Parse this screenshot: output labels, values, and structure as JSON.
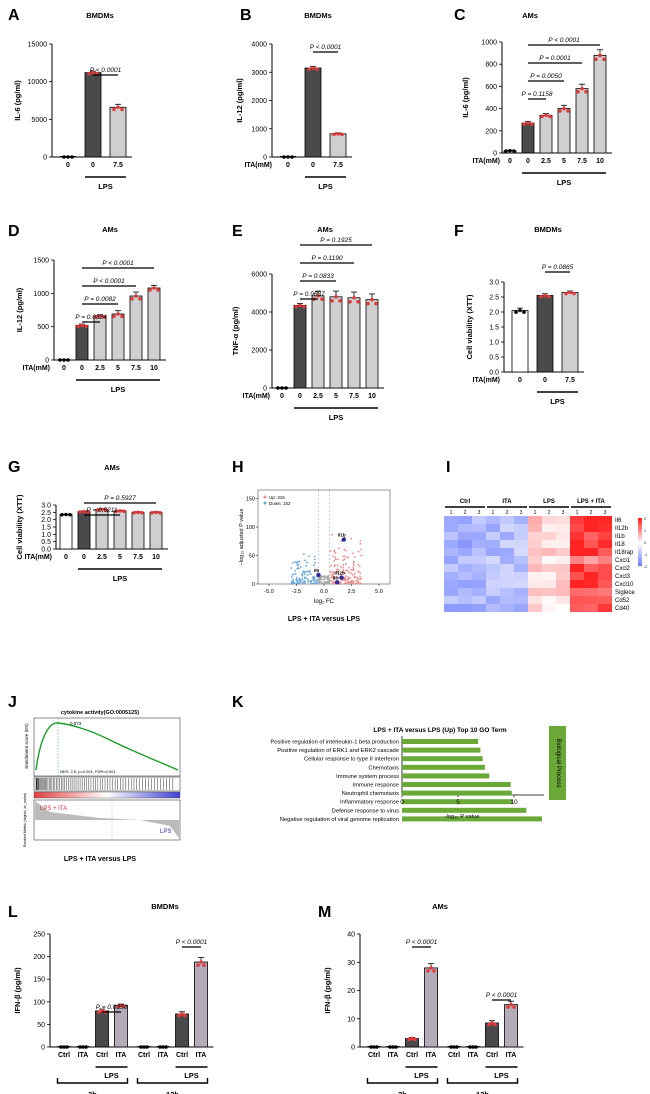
{
  "figure": {
    "panels": [
      {
        "letter": "A",
        "title": "BMDMs",
        "ylabel": "IL-6 (pg/ml)",
        "group": "LPS",
        "xrow": "ITA(mM)"
      },
      {
        "letter": "B",
        "title": "BMDMs",
        "ylabel": "IL-12 (pg/ml)",
        "group": "LPS",
        "xrow": "ITA(mM)"
      },
      {
        "letter": "C",
        "title": "AMs",
        "ylabel": "IL-6 (pg/ml)",
        "group": "LPS",
        "xrow": "ITA(mM)"
      },
      {
        "letter": "D",
        "title": "AMs",
        "ylabel": "IL-12 (pg/ml)",
        "group": "LPS",
        "xrow": "ITA(mM)"
      },
      {
        "letter": "E",
        "title": "AMs",
        "ylabel": "TNF-α (pg/ml)",
        "group": "LPS",
        "xrow": "ITA(mM)"
      },
      {
        "letter": "F",
        "title": "BMDMs",
        "ylabel": "Cell viability (XTT)",
        "group": "LPS",
        "xrow": "ITA(mM)"
      },
      {
        "letter": "G",
        "title": "AMs",
        "ylabel": "Cell viability (XTT)",
        "group": "LPS",
        "xrow": "ITA(mM)"
      },
      {
        "letter": "L",
        "title": "BMDMs",
        "ylabel": "IFN-β (pg/ml)",
        "group": "LPS"
      },
      {
        "letter": "M",
        "title": "AMs",
        "ylabel": "IFN-β (pg/ml)",
        "group": "LPS"
      }
    ],
    "volcano": {
      "letter": "H",
      "xlabel": "log₂ FC",
      "ylabel": "−log₁₀ adjusted P value",
      "caption": "LPS + ITA versus LPS",
      "legend": [
        "Up: 316",
        "Down: 162"
      ]
    },
    "heatmap": {
      "letter": "I",
      "groups": [
        "Ctrl",
        "ITA",
        "LPS",
        "LPS + ITA"
      ],
      "reps": [
        "1",
        "2",
        "3"
      ],
      "genes": [
        "Il6",
        "Il12b",
        "Il1b",
        "Il18",
        "Il18rap",
        "Cxcl1",
        "Cxcl2",
        "Cxcl3",
        "Cxcl10",
        "Siglece",
        "Cd52",
        "Cd40"
      ],
      "scale": [
        "2",
        "1",
        "0",
        "-1",
        "-2"
      ]
    },
    "gsea": {
      "letter": "J",
      "title": "cytokine activity(GO:0005125)",
      "ylabel": "Enrichment score (ES)",
      "stats": "NES: 2.5, p<0.001, FDR<0.001",
      "left_label": "LPS + ITA",
      "right_label": "LPS",
      "metric_label": "Ranked Metric (signal_to_noise)",
      "caption": "LPS + ITA versus LPS",
      "es_peak": "0.573"
    },
    "go": {
      "letter": "K",
      "title": "LPS + ITA versus LPS (Up) Top 10 GO Term",
      "side": "Biological Process",
      "xlabel": "-log₁₀ P value"
    },
    "time_labels": [
      "3h",
      "12h"
    ]
  },
  "chart_data": [
    {
      "panel": "A",
      "type": "bar",
      "title": "BMDMs",
      "ylabel": "IL-6 (pg/ml)",
      "categories": [
        "0",
        "0",
        "7.5"
      ],
      "ticks": [
        0,
        5000,
        10000,
        15000
      ],
      "ylim": [
        0,
        15000
      ],
      "values": [
        0,
        11200,
        6600
      ],
      "errors": [
        0,
        200,
        400
      ],
      "colors": [
        "white",
        "dark",
        "light"
      ],
      "pvalues": [
        {
          "text": "P < 0.0001",
          "a": 1,
          "b": 2
        }
      ],
      "lps": [
        1,
        2
      ]
    },
    {
      "panel": "B",
      "type": "bar",
      "title": "BMDMs",
      "ylabel": "IL-12 (pg/ml)",
      "categories": [
        "0",
        "0",
        "7.5"
      ],
      "ticks": [
        0,
        1000,
        2000,
        3000,
        4000
      ],
      "ylim": [
        0,
        4000
      ],
      "values": [
        0,
        3150,
        820
      ],
      "errors": [
        0,
        60,
        30
      ],
      "colors": [
        "white",
        "dark",
        "light"
      ],
      "pvalues": [
        {
          "text": "P < 0.0001",
          "a": 1,
          "b": 2
        }
      ],
      "lps": [
        1,
        2
      ]
    },
    {
      "panel": "C",
      "type": "bar",
      "title": "AMs",
      "ylabel": "IL-6 (pg/ml)",
      "categories": [
        "0",
        "0",
        "2.5",
        "5",
        "7.5",
        "10"
      ],
      "ticks": [
        0,
        200,
        400,
        600,
        800,
        1000
      ],
      "ylim": [
        0,
        1000
      ],
      "values": [
        20,
        270,
        340,
        400,
        580,
        880
      ],
      "errors": [
        5,
        15,
        15,
        30,
        40,
        50
      ],
      "colors": [
        "white",
        "dark",
        "light",
        "light",
        "light",
        "light"
      ],
      "pvalues": [
        {
          "text": "P = 0.1158",
          "a": 1,
          "b": 2
        },
        {
          "text": "P = 0.0050",
          "a": 1,
          "b": 3
        },
        {
          "text": "P = 0.0001",
          "a": 1,
          "b": 4
        },
        {
          "text": "P < 0.0001",
          "a": 1,
          "b": 5
        }
      ],
      "lps": [
        1,
        5
      ]
    },
    {
      "panel": "D",
      "type": "bar",
      "title": "AMs",
      "ylabel": "IL-12 (pg/ml)",
      "categories": [
        "0",
        "0",
        "2.5",
        "5",
        "7.5",
        "10"
      ],
      "ticks": [
        0,
        500,
        1000,
        1500
      ],
      "ylim": [
        0,
        1500
      ],
      "values": [
        0,
        520,
        660,
        690,
        960,
        1080
      ],
      "errors": [
        0,
        20,
        20,
        50,
        60,
        40
      ],
      "colors": [
        "white",
        "dark",
        "light",
        "light",
        "light",
        "light"
      ],
      "pvalues": [
        {
          "text": "P = 0.0324",
          "a": 1,
          "b": 2
        },
        {
          "text": "P = 0.0082",
          "a": 1,
          "b": 3
        },
        {
          "text": "P < 0.0001",
          "a": 1,
          "b": 4
        },
        {
          "text": "P < 0.0001",
          "a": 1,
          "b": 5
        }
      ],
      "lps": [
        1,
        5
      ]
    },
    {
      "panel": "E",
      "type": "bar",
      "title": "AMs",
      "ylabel": "TNF-α (pg/ml)",
      "categories": [
        "0",
        "0",
        "2.5",
        "5",
        "7.5",
        "10"
      ],
      "ticks": [
        0,
        2000,
        4000,
        6000
      ],
      "ylim": [
        0,
        6000
      ],
      "values": [
        0,
        4350,
        4850,
        4800,
        4750,
        4650
      ],
      "errors": [
        0,
        100,
        250,
        300,
        300,
        300
      ],
      "colors": [
        "white",
        "dark",
        "light",
        "light",
        "light",
        "light"
      ],
      "pvalues": [
        {
          "text": "P = 0.9637",
          "a": 1,
          "b": 2
        },
        {
          "text": "P = 0.0833",
          "a": 1,
          "b": 3
        },
        {
          "text": "P = 0.1190",
          "a": 1,
          "b": 4
        },
        {
          "text": "P = 0.1925",
          "a": 1,
          "b": 5
        }
      ],
      "lps": [
        1,
        5
      ]
    },
    {
      "panel": "F",
      "type": "bar",
      "title": "BMDMs",
      "ylabel": "Cell viability (XTT)",
      "categories": [
        "0",
        "0",
        "7.5"
      ],
      "ticks": [
        0.0,
        0.5,
        1.0,
        1.5,
        2.0,
        2.5,
        3.0
      ],
      "tick_decimals": 1,
      "ylim": [
        0,
        3
      ],
      "values": [
        2.05,
        2.55,
        2.65
      ],
      "errors": [
        0.08,
        0.06,
        0.05
      ],
      "colors": [
        "white",
        "dark",
        "light"
      ],
      "pvalues": [
        {
          "text": "P = 0.0865",
          "a": 1,
          "b": 2
        }
      ],
      "lps": [
        1,
        2
      ]
    },
    {
      "panel": "G",
      "type": "bar",
      "title": "AMs",
      "ylabel": "Cell viability (XTT)",
      "categories": [
        "0",
        "0",
        "2.5",
        "5",
        "7.5",
        "10"
      ],
      "ticks": [
        0.0,
        0.5,
        1.0,
        1.5,
        2.0,
        2.5,
        3.0
      ],
      "tick_decimals": 1,
      "ylim": [
        0,
        3
      ],
      "values": [
        2.35,
        2.55,
        2.7,
        2.6,
        2.5,
        2.5
      ],
      "errors": [
        0.02,
        0.04,
        0.05,
        0.04,
        0.04,
        0.04
      ],
      "colors": [
        "white",
        "dark",
        "light",
        "light",
        "light",
        "light"
      ],
      "pvalues": [
        {
          "text": "P = 0.5211",
          "a": 1,
          "b": 3
        },
        {
          "text": "P = 0.5927",
          "a": 1,
          "b": 5
        }
      ],
      "lps": [
        1,
        5
      ]
    },
    {
      "panel": "K",
      "type": "bar",
      "orientation": "horizontal",
      "title": "LPS + ITA versus LPS (Up) Top 10 GO Term",
      "xlabel": "-log₁₀ P value",
      "ticks": [
        0,
        5,
        10
      ],
      "xlim": [
        0,
        12.5
      ],
      "categories": [
        "Positive regulation of interleukin-1 beta production",
        "Positive  regulation of ERK1 and ERK2 cascade",
        "Cellular response to type II interferon",
        "Chemotaxis",
        "Immune system process",
        "Immune response",
        "Neutrophil chemotaxis",
        "Inflammatory response",
        "Defense response to virus",
        "Negative regulation of viral genome replication"
      ],
      "values": [
        6.8,
        7.0,
        7.2,
        7.4,
        7.8,
        9.7,
        9.8,
        9.9,
        11.1,
        12.5
      ]
    },
    {
      "panel": "L",
      "type": "bar",
      "title": "BMDMs",
      "ylabel": "IFN-β (pg/ml)",
      "categories": [
        "Ctrl",
        "ITA",
        "Ctrl",
        "ITA",
        "Ctrl",
        "ITA",
        "Ctrl",
        "ITA"
      ],
      "ticks": [
        0,
        50,
        100,
        150,
        200,
        250
      ],
      "ylim": [
        0,
        250
      ],
      "values": [
        0,
        0,
        80,
        92,
        0,
        0,
        73,
        188
      ],
      "errors": [
        0,
        0,
        4,
        3,
        0,
        0,
        5,
        10
      ],
      "colors": [
        "white",
        "white",
        "dark",
        "lavender",
        "white",
        "white",
        "dark",
        "lavender"
      ],
      "pvalues": [
        {
          "text": "P = 0.0350",
          "a": 2,
          "b": 3
        },
        {
          "text": "P < 0.0001",
          "a": 6,
          "b": 7
        }
      ],
      "lps_groups": [
        [
          2,
          3
        ],
        [
          6,
          7
        ]
      ]
    },
    {
      "panel": "M",
      "type": "bar",
      "title": "AMs",
      "ylabel": "IFN-β (pg/ml)",
      "categories": [
        "Ctrl",
        "ITA",
        "Ctrl",
        "ITA",
        "Ctrl",
        "ITA",
        "Ctrl",
        "ITA"
      ],
      "ticks": [
        0,
        10,
        20,
        30,
        40
      ],
      "ylim": [
        0,
        40
      ],
      "values": [
        0,
        0,
        3,
        28,
        0,
        0,
        8.5,
        15
      ],
      "errors": [
        0,
        0,
        0.4,
        1.5,
        0,
        0,
        0.8,
        1.2
      ],
      "colors": [
        "white",
        "white",
        "dark",
        "lavender",
        "white",
        "white",
        "dark",
        "lavender"
      ],
      "pvalues": [
        {
          "text": "P < 0.0001",
          "a": 2,
          "b": 3
        },
        {
          "text": "P < 0.0001",
          "a": 6,
          "b": 7
        }
      ],
      "lps_groups": [
        [
          2,
          3
        ],
        [
          6,
          7
        ]
      ]
    },
    {
      "panel": "H",
      "type": "scatter",
      "xlabel": "log₂ FC",
      "ylabel": "−log₁₀ adjusted P value",
      "xticks": [
        -5.0,
        -2.5,
        0.0,
        2.5,
        5.0
      ],
      "yticks": [
        0,
        50,
        100,
        150
      ],
      "xlim": [
        -6,
        6
      ],
      "ylim": [
        0,
        165
      ],
      "labeled_points": [
        {
          "label": "Il1b",
          "x": 1.8,
          "y": 78
        },
        {
          "label": "Il6",
          "x": -0.5,
          "y": 16
        },
        {
          "label": "Il12b",
          "x": 1.6,
          "y": 11
        },
        {
          "label": "Il8",
          "x": 1.2,
          "y": 3
        }
      ]
    }
  ]
}
